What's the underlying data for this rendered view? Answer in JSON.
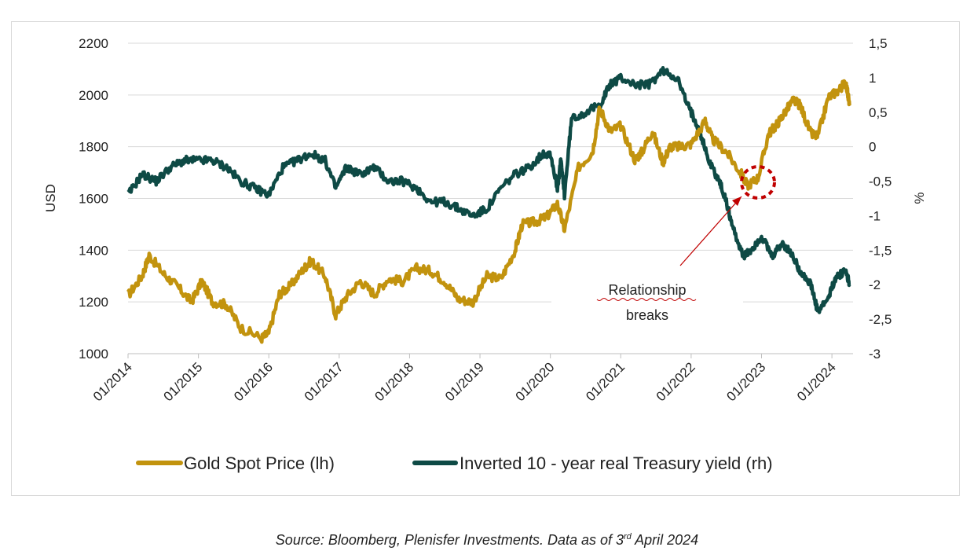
{
  "chart_data": {
    "type": "line",
    "title": "",
    "ylabel_left": "USD",
    "ylabel_right": "%",
    "x_tick_labels": [
      "01/2014",
      "01/2015",
      "01/2016",
      "01/2017",
      "01/2018",
      "01/2019",
      "01/2020",
      "01/2021",
      "01/2022",
      "01/2023",
      "01/2024"
    ],
    "xlim": [
      2014.0,
      2024.3
    ],
    "ylim_left": [
      1000,
      2200
    ],
    "ylim_right": [
      -3,
      1.5
    ],
    "y_left_ticks": [
      "2200",
      "2000",
      "1800",
      "1600",
      "1400",
      "1200",
      "1000"
    ],
    "y_right_ticks": [
      "1,5",
      "1",
      "0,5",
      "0",
      "-0,5",
      "-1",
      "-1,5",
      "-2",
      "-2,5",
      "-3"
    ],
    "grid": true,
    "legend_position": "bottom",
    "series": [
      {
        "name": "Gold Spot Price (lh)",
        "axis": "left",
        "color": "#c2930e",
        "x": [
          2014.0,
          2014.2,
          2014.3,
          2014.5,
          2014.7,
          2014.9,
          2015.05,
          2015.2,
          2015.4,
          2015.6,
          2015.9,
          2016.0,
          2016.15,
          2016.3,
          2016.5,
          2016.6,
          2016.8,
          2016.95,
          2017.1,
          2017.3,
          2017.5,
          2017.7,
          2017.9,
          2018.1,
          2018.3,
          2018.5,
          2018.7,
          2018.9,
          2019.1,
          2019.3,
          2019.5,
          2019.6,
          2019.8,
          2019.95,
          2020.1,
          2020.2,
          2020.4,
          2020.6,
          2020.7,
          2020.85,
          2021.0,
          2021.2,
          2021.3,
          2021.45,
          2021.6,
          2021.7,
          2021.85,
          2022.0,
          2022.2,
          2022.3,
          2022.5,
          2022.7,
          2022.8,
          2022.95,
          2023.1,
          2023.2,
          2023.3,
          2023.45,
          2023.55,
          2023.7,
          2023.8,
          2023.95,
          2024.1,
          2024.2,
          2024.25
        ],
        "values": [
          1225,
          1300,
          1380,
          1310,
          1260,
          1200,
          1280,
          1200,
          1190,
          1100,
          1060,
          1080,
          1230,
          1260,
          1330,
          1360,
          1300,
          1150,
          1220,
          1280,
          1230,
          1290,
          1280,
          1330,
          1320,
          1280,
          1210,
          1200,
          1300,
          1290,
          1400,
          1500,
          1510,
          1530,
          1580,
          1480,
          1720,
          1780,
          1950,
          1860,
          1880,
          1750,
          1780,
          1860,
          1740,
          1800,
          1800,
          1810,
          1900,
          1830,
          1780,
          1700,
          1650,
          1680,
          1850,
          1880,
          1920,
          1980,
          1960,
          1850,
          1840,
          1990,
          2020,
          2050,
          1960
        ]
      },
      {
        "name": "Inverted 10 - year real Treasury yield (rh)",
        "axis": "right",
        "color": "#0e4a45",
        "x": [
          2014.0,
          2014.2,
          2014.4,
          2014.6,
          2014.8,
          2015.0,
          2015.2,
          2015.4,
          2015.6,
          2015.8,
          2016.0,
          2016.2,
          2016.4,
          2016.6,
          2016.8,
          2016.95,
          2017.1,
          2017.3,
          2017.5,
          2017.7,
          2017.9,
          2018.1,
          2018.3,
          2018.5,
          2018.7,
          2018.9,
          2019.1,
          2019.3,
          2019.5,
          2019.7,
          2019.9,
          2020.0,
          2020.1,
          2020.15,
          2020.2,
          2020.3,
          2020.5,
          2020.7,
          2020.85,
          2021.0,
          2021.2,
          2021.4,
          2021.6,
          2021.8,
          2021.95,
          2022.1,
          2022.25,
          2022.4,
          2022.5,
          2022.6,
          2022.75,
          2022.85,
          2023.0,
          2023.15,
          2023.3,
          2023.45,
          2023.55,
          2023.7,
          2023.8,
          2023.95,
          2024.05,
          2024.2,
          2024.25
        ],
        "values": [
          -0.7,
          -0.4,
          -0.5,
          -0.3,
          -0.2,
          -0.2,
          -0.2,
          -0.3,
          -0.5,
          -0.6,
          -0.7,
          -0.3,
          -0.2,
          -0.1,
          -0.2,
          -0.6,
          -0.3,
          -0.4,
          -0.3,
          -0.5,
          -0.5,
          -0.6,
          -0.8,
          -0.8,
          -0.9,
          -1.0,
          -0.9,
          -0.6,
          -0.4,
          -0.3,
          -0.1,
          -0.1,
          -0.6,
          -0.2,
          -0.7,
          0.4,
          0.5,
          0.6,
          0.9,
          1.0,
          0.9,
          0.9,
          1.1,
          1.0,
          0.6,
          0.3,
          -0.2,
          -0.5,
          -0.8,
          -1.2,
          -1.6,
          -1.5,
          -1.3,
          -1.6,
          -1.4,
          -1.6,
          -1.8,
          -2.0,
          -2.4,
          -2.2,
          -1.9,
          -1.8,
          -2.0
        ]
      }
    ],
    "annotation": {
      "line1": "Relationship",
      "line2": "breaks",
      "arrow_color": "#c00000",
      "circle_color": "#c00000"
    }
  },
  "footer": {
    "source_prefix": "Source: Bloomberg, Plenisfer Investments. Data as of 3",
    "source_sup": "rd",
    "source_suffix": " April 2024"
  }
}
